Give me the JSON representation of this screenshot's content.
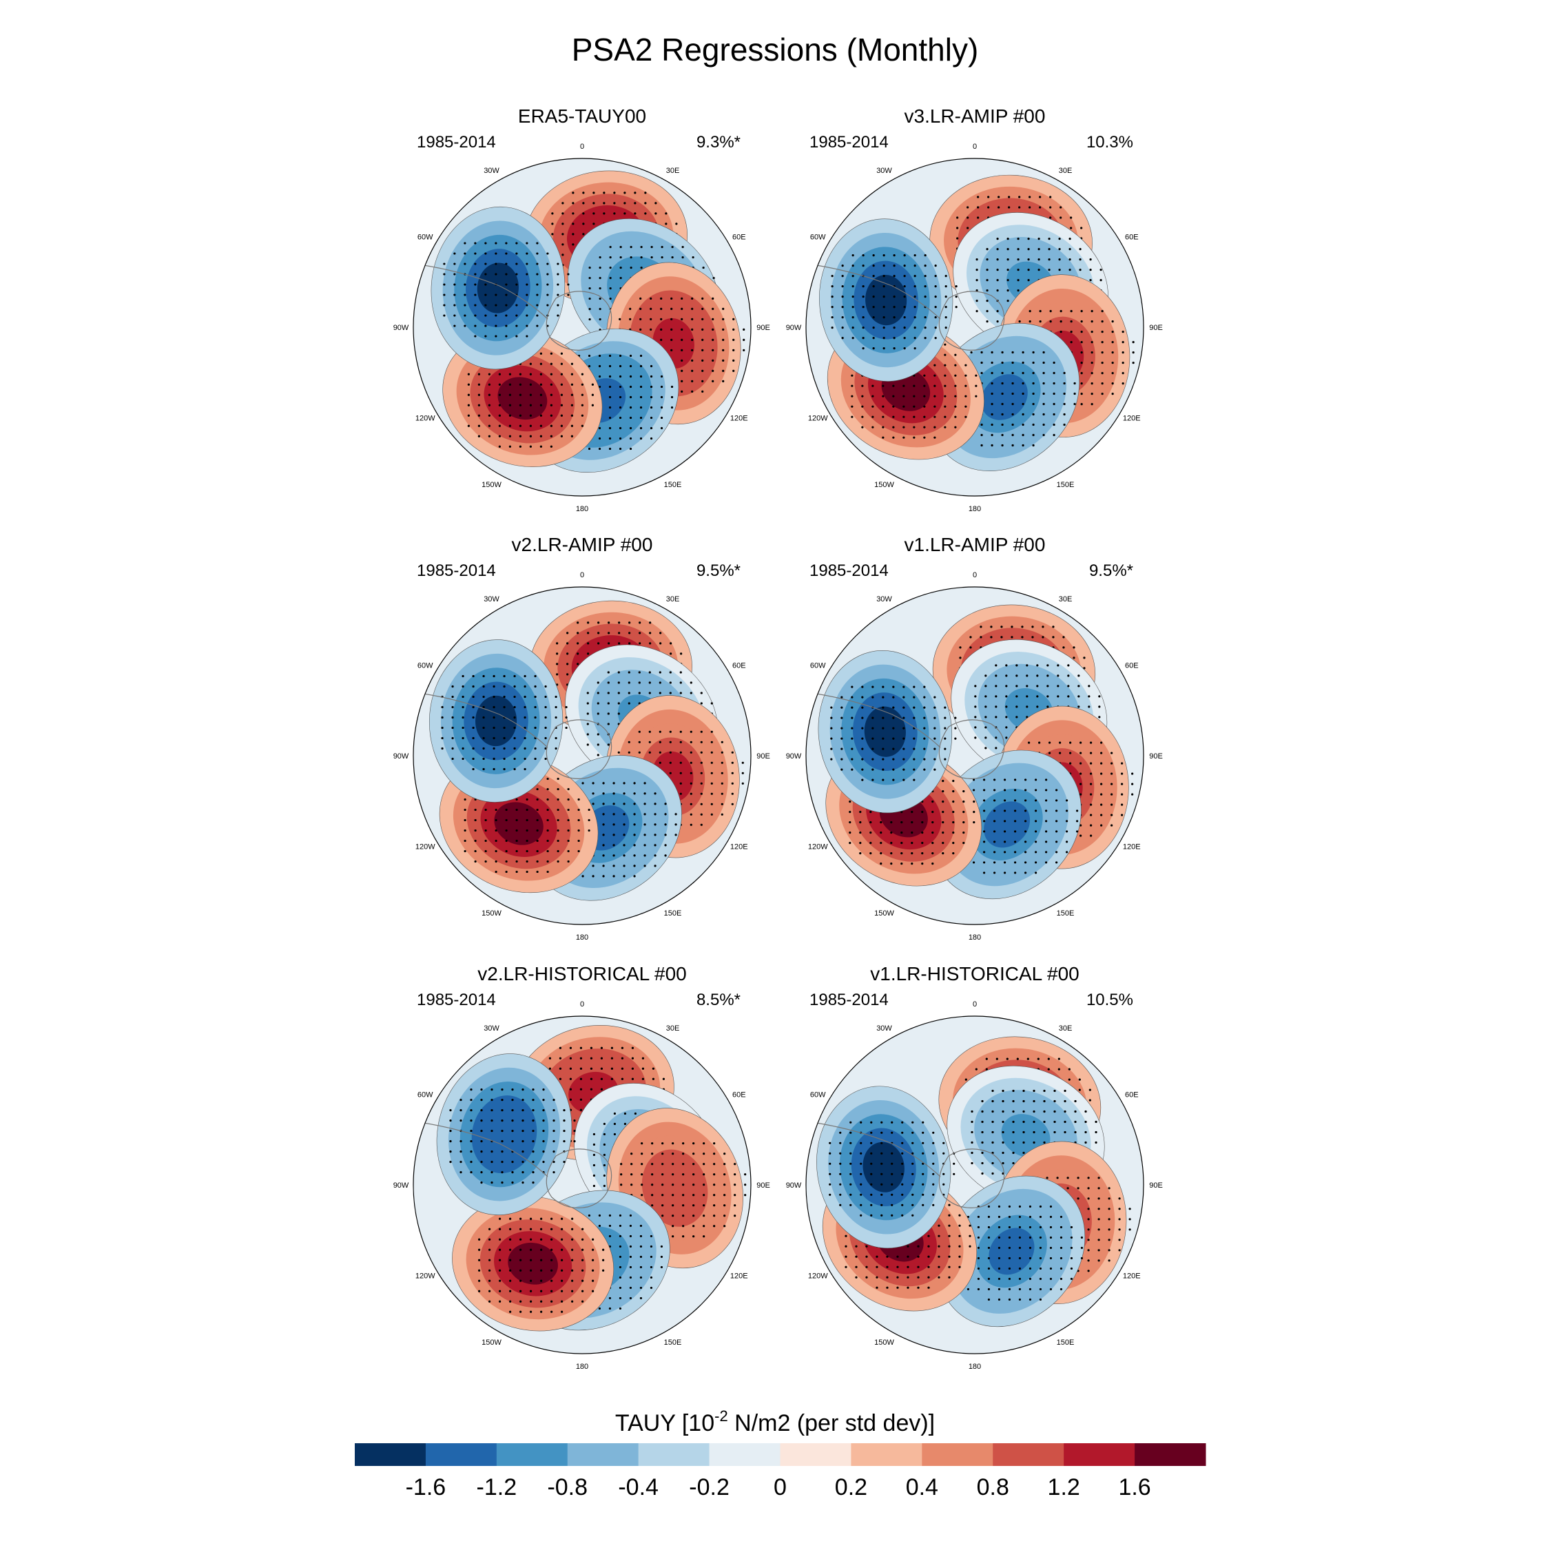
{
  "figure": {
    "title": "PSA2 Regressions (Monthly)",
    "variable_label_prefix": "TAUY [10",
    "variable_label_exponent": "-2",
    "variable_label_suffix": " N/m2 (per std dev)]"
  },
  "longitude_labels": [
    "0",
    "30E",
    "60E",
    "90E",
    "120E",
    "150E",
    "180",
    "150W",
    "120W",
    "90W",
    "60W",
    "30W"
  ],
  "panels": [
    {
      "name": "ERA5-TAUY00",
      "period": "1985-2014",
      "variance": "9.3%*",
      "pattern_phase": 0,
      "pattern_strength": 1.0
    },
    {
      "name": "v3.LR-AMIP  #00",
      "period": "1985-2014",
      "variance": "10.3%",
      "pattern_phase": 8,
      "pattern_strength": 0.9
    },
    {
      "name": "v2.LR-AMIP  #00",
      "period": "1985-2014",
      "variance": "9.5%*",
      "pattern_phase": 3,
      "pattern_strength": 0.95
    },
    {
      "name": "v1.LR-AMIP  #00",
      "period": "1985-2014",
      "variance": "9.5%*",
      "pattern_phase": 10,
      "pattern_strength": 0.9
    },
    {
      "name": "v2.LR-HISTORICAL  #00",
      "period": "1985-2014",
      "variance": "8.5%*",
      "pattern_phase": -8,
      "pattern_strength": 0.85
    },
    {
      "name": "v1.LR-HISTORICAL  #00",
      "period": "1985-2014",
      "variance": "10.5%",
      "pattern_phase": 14,
      "pattern_strength": 0.95
    }
  ],
  "colorbar": {
    "ticks": [
      "-1.6",
      "-1.2",
      "-0.8",
      "-0.4",
      "-0.2",
      "0",
      "0.2",
      "0.4",
      "0.8",
      "1.2",
      "1.6"
    ],
    "colors": [
      "#053061",
      "#2166ac",
      "#4393c3",
      "#7fb5d8",
      "#b5d5e8",
      "#e5eef4",
      "#fbe6dc",
      "#f6b99c",
      "#e7896b",
      "#cf5247",
      "#b2182b",
      "#67001f"
    ]
  },
  "chart_data": {
    "type": "heatmap",
    "title": "PSA2 Regressions (Monthly)",
    "projection": "south polar stereographic",
    "units": "10^-2 N/m2 (per std dev)",
    "contour_levels": [
      -1.6,
      -1.2,
      -0.8,
      -0.4,
      -0.2,
      0,
      0.2,
      0.4,
      0.8,
      1.2,
      1.6
    ],
    "panels": [
      "ERA5-TAUY00",
      "v3.LR-AMIP  #00",
      "v2.LR-AMIP  #00",
      "v1.LR-AMIP  #00",
      "v2.LR-HISTORICAL  #00",
      "v1.LR-HISTORICAL  #00"
    ],
    "explained_variance_percent": [
      9.3,
      10.3,
      9.5,
      9.5,
      8.5,
      10.5
    ],
    "significant": [
      true,
      false,
      true,
      true,
      true,
      false
    ],
    "anomaly_centers": [
      {
        "sign": "positive",
        "lon": 15,
        "colat_fraction": 0.55,
        "amplitude": 1.6
      },
      {
        "sign": "negative",
        "lon": 60,
        "colat_fraction": 0.42,
        "amplitude": -1.0
      },
      {
        "sign": "positive",
        "lon": 100,
        "colat_fraction": 0.55,
        "amplitude": 1.4
      },
      {
        "sign": "negative",
        "lon": 165,
        "colat_fraction": 0.45,
        "amplitude": -1.4
      },
      {
        "sign": "positive",
        "lon": -140,
        "colat_fraction": 0.55,
        "amplitude": 2.0
      },
      {
        "sign": "negative",
        "lon": -65,
        "colat_fraction": 0.55,
        "amplitude": -1.8
      }
    ]
  }
}
